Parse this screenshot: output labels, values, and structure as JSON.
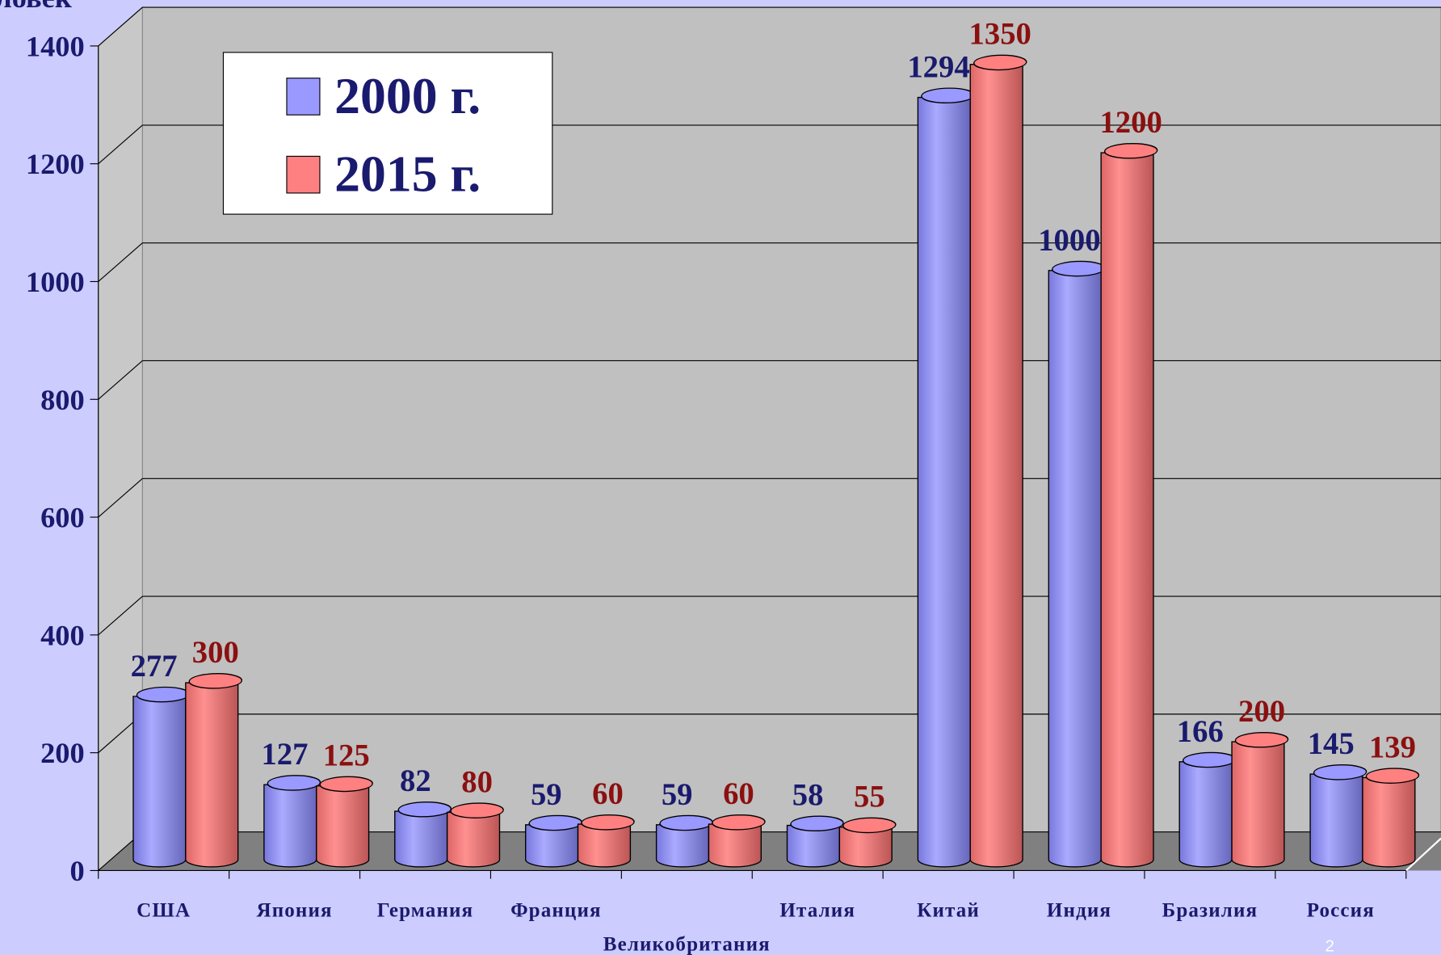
{
  "chart_data": {
    "type": "bar3d",
    "y_label": "ловек",
    "categories": [
      "США",
      "Япония",
      "Германия",
      "Франция",
      "Великобритания",
      "Италия",
      "Китай",
      "Индия",
      "Бразилия",
      "Россия"
    ],
    "series": [
      {
        "name": "2000 г.",
        "color": "#9999ff",
        "values": [
          277,
          127,
          82,
          59,
          59,
          58,
          1294,
          1000,
          166,
          145
        ]
      },
      {
        "name": "2015 г.",
        "color": "#ff8080",
        "values": [
          300,
          125,
          80,
          60,
          60,
          55,
          1350,
          1200,
          200,
          139
        ]
      }
    ],
    "ylim": [
      0,
      1400
    ],
    "yticks": [
      0,
      200,
      400,
      600,
      800,
      1000,
      1200,
      1400
    ],
    "grid": true,
    "legend": "top-left",
    "page_number": "2"
  }
}
